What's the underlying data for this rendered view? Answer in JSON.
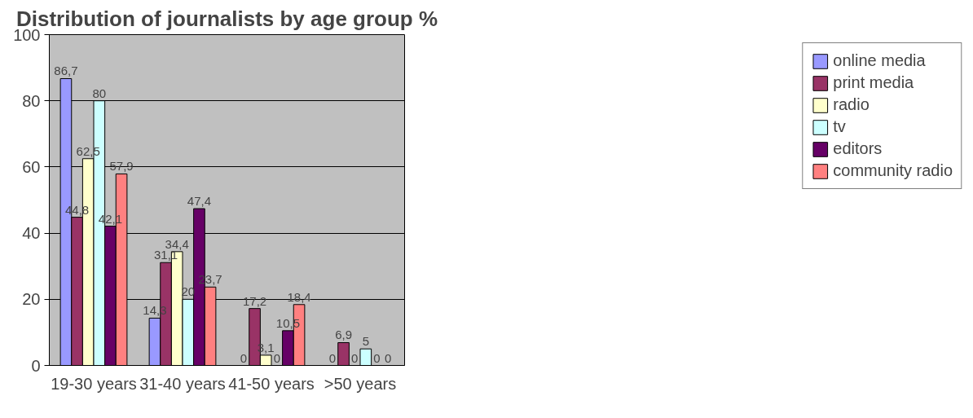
{
  "chart_data": {
    "type": "bar",
    "title": "Distribution of journalists by age group %",
    "categories": [
      "19-30 years",
      "31-40 years",
      "41-50 years",
      ">50 years"
    ],
    "series": [
      {
        "name": "online media",
        "color": "#9999ff",
        "values": [
          86.7,
          14.3,
          0,
          0
        ],
        "value_labels": [
          "86,7",
          "14,3",
          "0",
          "0"
        ]
      },
      {
        "name": "print media",
        "color": "#993366",
        "values": [
          44.8,
          31.1,
          17.2,
          6.9
        ],
        "value_labels": [
          "44,8",
          "31,1",
          "17,2",
          "6,9"
        ]
      },
      {
        "name": "radio",
        "color": "#ffffcc",
        "values": [
          62.5,
          34.4,
          3.1,
          0
        ],
        "value_labels": [
          "62,5",
          "34,4",
          "3,1",
          "0"
        ]
      },
      {
        "name": "tv",
        "color": "#ccffff",
        "values": [
          80,
          20,
          0,
          5
        ],
        "value_labels": [
          "80",
          "20",
          "0",
          "5"
        ]
      },
      {
        "name": "editors",
        "color": "#660066",
        "values": [
          42.1,
          47.4,
          10.5,
          0
        ],
        "value_labels": [
          "42,1",
          "47,4",
          "10,5",
          "0"
        ]
      },
      {
        "name": "community radio",
        "color": "#ff8080",
        "values": [
          57.9,
          23.7,
          18.4,
          0
        ],
        "value_labels": [
          "57,9",
          "23,7",
          "18,4",
          "0"
        ]
      }
    ],
    "ylim": [
      0,
      100
    ],
    "yticks": [
      0,
      20,
      40,
      60,
      80,
      100
    ],
    "grid": "y",
    "legend": "right"
  }
}
